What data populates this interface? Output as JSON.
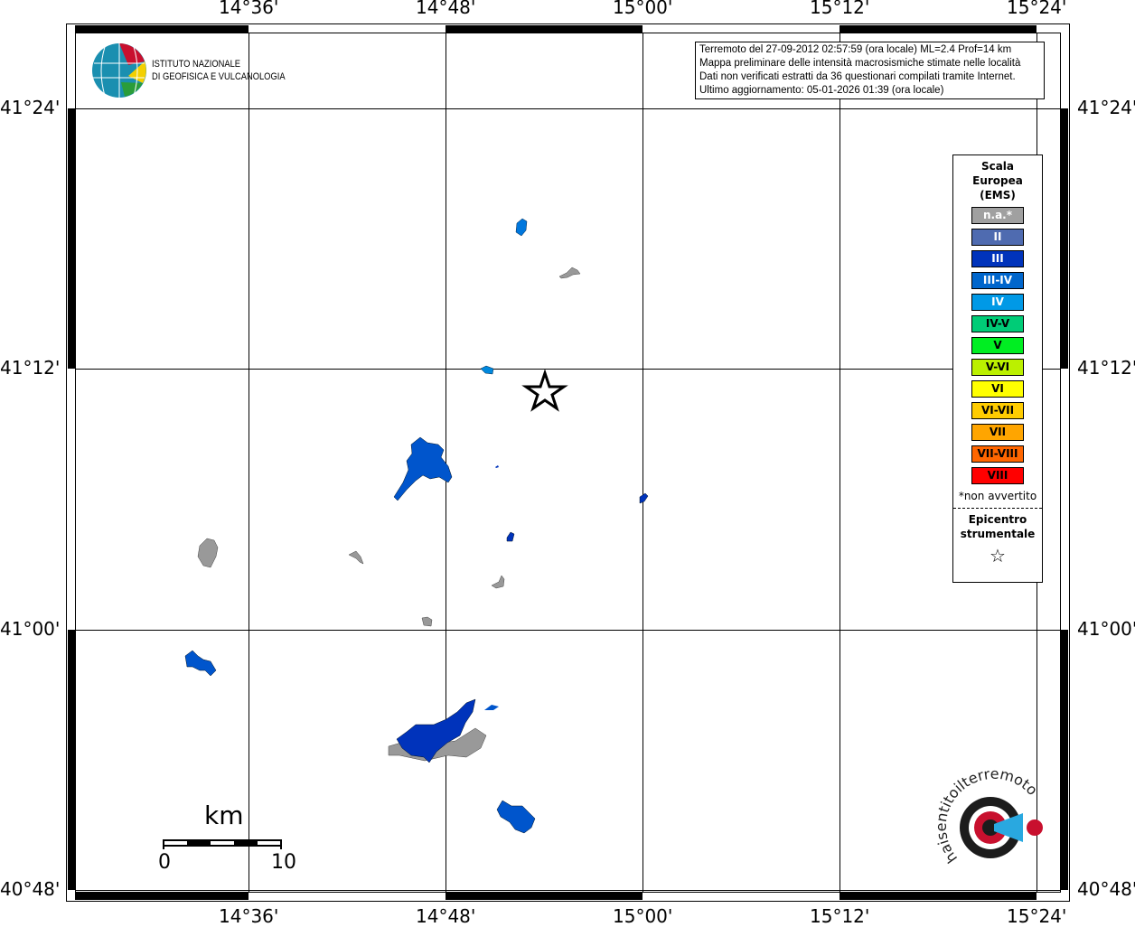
{
  "map": {
    "lon_ticks": [
      "14°36'",
      "14°48'",
      "15°00'",
      "15°12'",
      "15°24'"
    ],
    "lat_ticks": [
      "41°24'",
      "41°12'",
      "41°00'",
      "40°48'"
    ]
  },
  "info": {
    "lines": [
      "Terremoto del 27-09-2012 02:57:59 (ora locale) ML=2.4 Prof=14 km",
      "Mappa preliminare delle intensità macrosismiche stimate nelle località",
      "Dati non verificati estratti da 36 questionari compilati tramite Internet.",
      "Ultimo aggiornamento: 05-01-2026 01:39 (ora locale)"
    ]
  },
  "legend": {
    "title": [
      "Scala",
      "Europea",
      "(EMS)"
    ],
    "items": [
      {
        "label": "n.a.*",
        "color": "#a0a0a0",
        "text": "#fff"
      },
      {
        "label": "II",
        "color": "#4f6bb0",
        "text": "#fff"
      },
      {
        "label": "III",
        "color": "#0033bb",
        "text": "#fff"
      },
      {
        "label": "III-IV",
        "color": "#0066cc",
        "text": "#fff"
      },
      {
        "label": "IV",
        "color": "#0099e6",
        "text": "#fff"
      },
      {
        "label": "IV-V",
        "color": "#00cc77",
        "text": "#000"
      },
      {
        "label": "V",
        "color": "#00ee22",
        "text": "#000"
      },
      {
        "label": "V-VI",
        "color": "#bbf000",
        "text": "#000"
      },
      {
        "label": "VI",
        "color": "#ffff00",
        "text": "#000"
      },
      {
        "label": "VI-VII",
        "color": "#ffcc00",
        "text": "#000"
      },
      {
        "label": "VII",
        "color": "#ffa500",
        "text": "#000"
      },
      {
        "label": "VII-VIII",
        "color": "#ff6600",
        "text": "#000"
      },
      {
        "label": "VIII",
        "color": "#ff0000",
        "text": "#000"
      }
    ],
    "note": "*non avvertito",
    "epicenter": [
      "Epicentro",
      "strumentale"
    ]
  },
  "logo": {
    "ingv": [
      "ISTITUTO NAZIONALE",
      "DI GEOFISICA E VULCANOLOGIA"
    ],
    "hsit": "www.haisentitoilterremoto.it"
  },
  "scale": {
    "unit": "km",
    "min": "0",
    "max": "10"
  }
}
